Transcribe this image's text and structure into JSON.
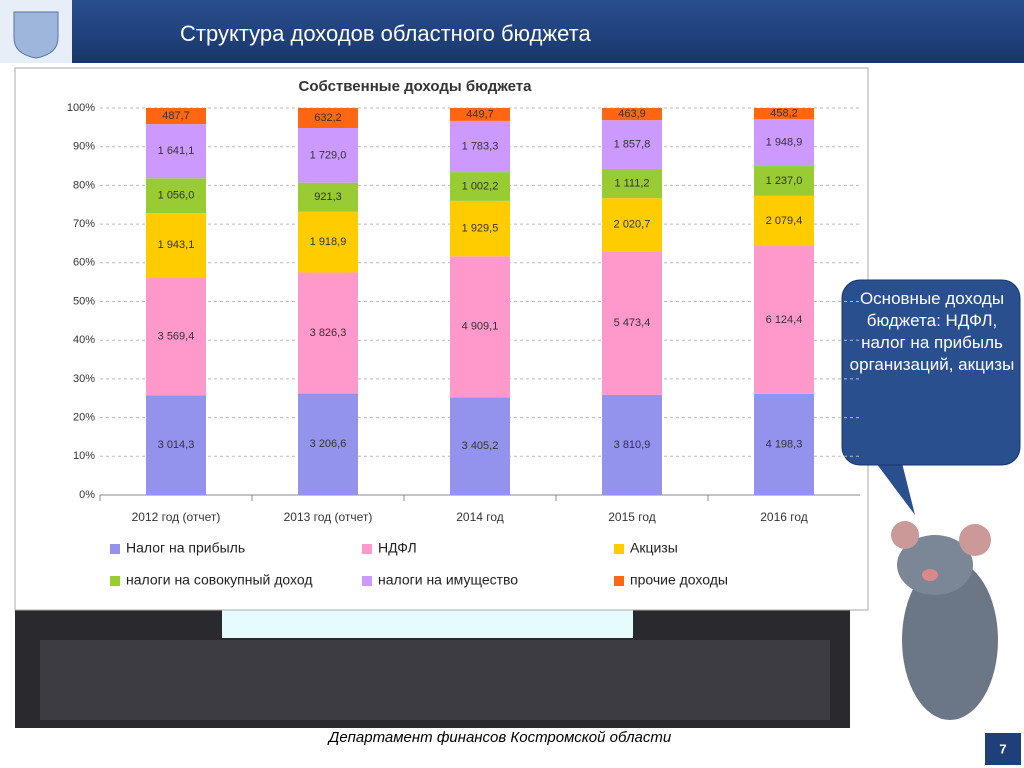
{
  "header": {
    "title": "Структура доходов областного бюджета"
  },
  "chart_data": {
    "type": "bar",
    "stacked": "percent",
    "title": "Собственные доходы бюджета",
    "categories": [
      "2012 год (отчет)",
      "2013 год (отчет)",
      "2014 год",
      "2015 год",
      "2016 год"
    ],
    "series": [
      {
        "name": "Налог на прибыль",
        "color": "#9393ee",
        "values": [
          3014.3,
          3206.6,
          3405.2,
          3810.9,
          4198.3
        ],
        "value_labels": [
          "3 014,3",
          "3 206,6",
          "3 405,2",
          "3 810,9",
          "4 198,3"
        ]
      },
      {
        "name": "НДФЛ",
        "color": "#ff99cc",
        "values": [
          3569.4,
          3826.3,
          4909.1,
          5473.4,
          6124.4
        ],
        "value_labels": [
          "3 569,4",
          "3 826,3",
          "4 909,1",
          "5 473,4",
          "6 124,4"
        ]
      },
      {
        "name": "Акцизы",
        "color": "#ffcc00",
        "values": [
          1943.1,
          1918.9,
          1929.5,
          2020.7,
          2079.4
        ],
        "value_labels": [
          "1 943,1",
          "1 918,9",
          "1 929,5",
          "2 020,7",
          "2 079,4"
        ]
      },
      {
        "name": "налоги на совокупный доход",
        "color": "#99cc33",
        "values": [
          1056.0,
          921.3,
          1002.2,
          1111.2,
          1237.0
        ],
        "value_labels": [
          "1 056,0",
          "921,3",
          "1 002,2",
          "1 111,2",
          "1 237,0"
        ]
      },
      {
        "name": "налоги на имущество",
        "color": "#cc99ff",
        "values": [
          1641.1,
          1729.0,
          1783.3,
          1857.8,
          1948.9
        ],
        "value_labels": [
          "1 641,1",
          "1 729,0",
          "1 783,3",
          "1 857,8",
          "1 948,9"
        ]
      },
      {
        "name": "прочие доходы",
        "color": "#ff6611",
        "values": [
          487.7,
          632.2,
          449.7,
          463.9,
          458.2
        ],
        "value_labels": [
          "487,7",
          "632,2",
          "449,7",
          "463,9",
          "458,2"
        ]
      }
    ],
    "ylim": [
      0,
      100
    ],
    "yticks": [
      {
        "value": 0,
        "label": "0%"
      },
      {
        "value": 10,
        "label": "10%"
      },
      {
        "value": 20,
        "label": "20%"
      },
      {
        "value": 30,
        "label": "30%"
      },
      {
        "value": 40,
        "label": "40%"
      },
      {
        "value": 50,
        "label": "50%"
      },
      {
        "value": 60,
        "label": "60%"
      },
      {
        "value": 70,
        "label": "70%"
      },
      {
        "value": 80,
        "label": "80%"
      },
      {
        "value": 90,
        "label": "90%"
      },
      {
        "value": 100,
        "label": "100%"
      }
    ],
    "grid": true,
    "legend": "bottom"
  },
  "callout": {
    "text": "Основные доходы бюджета: НДФЛ, налог на прибыль организаций, акцизы"
  },
  "footer": {
    "text": "Департамент финансов  Костромской области",
    "page": "7"
  }
}
